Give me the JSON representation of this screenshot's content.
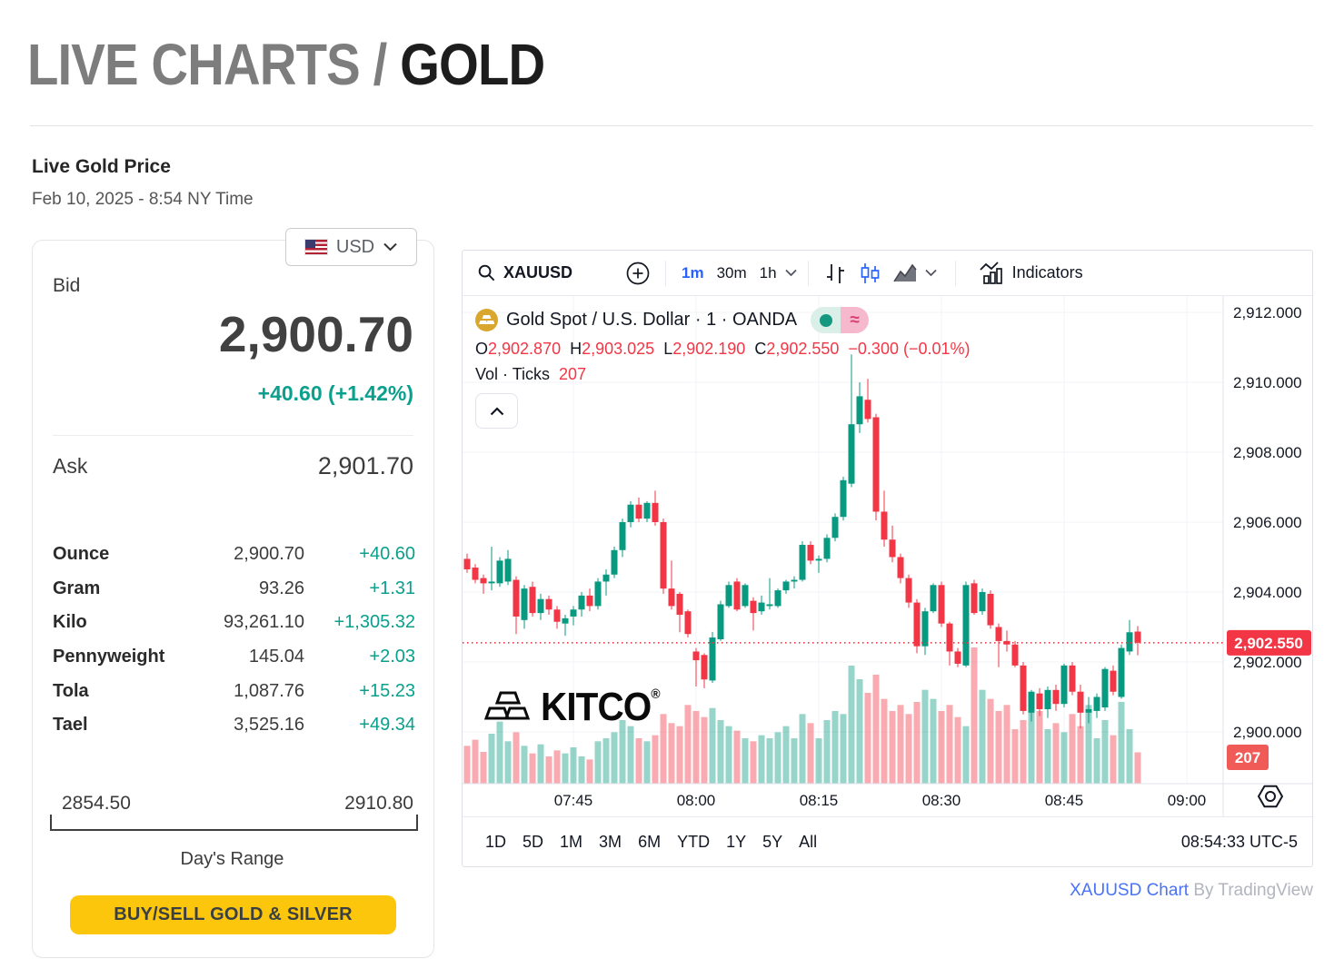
{
  "page": {
    "title_gray": "LIVE CHARTS /",
    "title_black": "GOLD",
    "section_title": "Live Gold Price",
    "datetime": "Feb 10, 2025 - 8:54 NY Time",
    "footer_link": "XAUUSD Chart",
    "footer_by": "By TradingView"
  },
  "quote_card": {
    "currency": "USD",
    "bid_label": "Bid",
    "bid": "2,900.70",
    "change": "+40.60 (+1.42%)",
    "ask_label": "Ask",
    "ask": "2,901.70",
    "units": [
      {
        "label": "Ounce",
        "value": "2,900.70",
        "change": "+40.60"
      },
      {
        "label": "Gram",
        "value": "93.26",
        "change": "+1.31"
      },
      {
        "label": "Kilo",
        "value": "93,261.10",
        "change": "+1,305.32"
      },
      {
        "label": "Pennyweight",
        "value": "145.04",
        "change": "+2.03"
      },
      {
        "label": "Tola",
        "value": "1,087.76",
        "change": "+15.23"
      },
      {
        "label": "Tael",
        "value": "3,525.16",
        "change": "+49.34"
      }
    ],
    "range_low": "2854.50",
    "range_high": "2910.80",
    "range_label": "Day's Range",
    "buy_button": "BUY/SELL GOLD & SILVER",
    "accent_teal": "#0aa08d",
    "button_yellow": "#fcc60d"
  },
  "chart": {
    "toolbar": {
      "symbol": "XAUUSD",
      "intervals": [
        "1m",
        "30m",
        "1h"
      ],
      "active_interval": "1m",
      "indicators_label": "Indicators"
    },
    "legend": {
      "title": "Gold Spot / U.S. Dollar · 1 · OANDA",
      "items": [
        {
          "k": "O",
          "v": "2,902.870"
        },
        {
          "k": "H",
          "v": "2,903.025"
        },
        {
          "k": "L",
          "v": "2,902.190"
        },
        {
          "k": "C",
          "v": "2,902.550"
        }
      ],
      "change": "−0.300 (−0.01%)",
      "vol_label": "Vol · Ticks",
      "vol_value": "207"
    },
    "watermark": "KITCO",
    "watermark_reg": "®",
    "range_buttons": [
      "1D",
      "5D",
      "1M",
      "3M",
      "6M",
      "YTD",
      "1Y",
      "5Y",
      "All"
    ],
    "clock": "08:54:33 UTC-5",
    "accent_blue": "#2962ff"
  },
  "chart_data": {
    "type": "candlestick",
    "symbol": "XAUUSD",
    "interval": "1m",
    "start_time": "07:31",
    "title": "Gold Spot / U.S. Dollar · 1 · OANDA",
    "up_color": "#089981",
    "down_color": "#f23645",
    "grid": true,
    "ylim": [
      2899.4,
      2912.6
    ],
    "y_ticks": [
      {
        "v": 2912,
        "label": "2,912.000"
      },
      {
        "v": 2910,
        "label": "2,910.000"
      },
      {
        "v": 2908,
        "label": "2,908.000"
      },
      {
        "v": 2906,
        "label": "2,906.000"
      },
      {
        "v": 2904,
        "label": "2,904.000"
      },
      {
        "v": 2902,
        "label": "2,902.000"
      },
      {
        "v": 2900,
        "label": "2,900.000"
      }
    ],
    "x_ticks": [
      {
        "minute": 14,
        "label": "07:45"
      },
      {
        "minute": 29,
        "label": "08:00"
      },
      {
        "minute": 44,
        "label": "08:15"
      },
      {
        "minute": 59,
        "label": "08:30"
      },
      {
        "minute": 74,
        "label": "08:45"
      },
      {
        "minute": 89,
        "label": "09:00"
      }
    ],
    "last_price": 2902.55,
    "last_price_label": "2,902.550",
    "last_volume_label": "207",
    "ohlc": [
      [
        2905.6,
        2905.85,
        2904.75,
        2904.9
      ],
      [
        2904.95,
        2905.1,
        2904.55,
        2904.65
      ],
      [
        2904.7,
        2904.8,
        2904.25,
        2904.35
      ],
      [
        2904.4,
        2904.5,
        2903.95,
        2904.25
      ],
      [
        2904.25,
        2905.3,
        2904.05,
        2904.3
      ],
      [
        2904.25,
        2905.0,
        2904.15,
        2904.9
      ],
      [
        2904.3,
        2905.2,
        2904.2,
        2904.95
      ],
      [
        2904.35,
        2904.45,
        2902.8,
        2903.3
      ],
      [
        2903.2,
        2904.2,
        2902.95,
        2904.1
      ],
      [
        2904.15,
        2904.3,
        2903.3,
        2903.4
      ],
      [
        2903.4,
        2903.95,
        2903.2,
        2903.8
      ],
      [
        2903.8,
        2903.9,
        2903.35,
        2903.5
      ],
      [
        2903.5,
        2903.6,
        2902.95,
        2903.15
      ],
      [
        2903.1,
        2903.35,
        2902.75,
        2903.25
      ],
      [
        2903.3,
        2903.6,
        2903.05,
        2903.5
      ],
      [
        2903.5,
        2904.0,
        2903.3,
        2903.9
      ],
      [
        2903.9,
        2904.1,
        2903.45,
        2903.6
      ],
      [
        2903.6,
        2904.4,
        2903.5,
        2904.3
      ],
      [
        2904.3,
        2904.65,
        2903.9,
        2904.5
      ],
      [
        2904.5,
        2905.3,
        2904.4,
        2905.2
      ],
      [
        2905.2,
        2906.1,
        2905.0,
        2906.0
      ],
      [
        2906.0,
        2906.6,
        2905.85,
        2906.5
      ],
      [
        2906.5,
        2906.7,
        2906.0,
        2906.1
      ],
      [
        2906.1,
        2906.6,
        2906.0,
        2906.55
      ],
      [
        2906.55,
        2906.9,
        2905.9,
        2906.0
      ],
      [
        2906.0,
        2906.1,
        2903.95,
        2904.1
      ],
      [
        2904.1,
        2904.9,
        2903.5,
        2903.6
      ],
      [
        2903.95,
        2904.0,
        2902.85,
        2903.35
      ],
      [
        2903.45,
        2903.5,
        2902.7,
        2902.8
      ],
      [
        2902.3,
        2902.4,
        2901.3,
        2902.05
      ],
      [
        2902.2,
        2902.25,
        2901.25,
        2901.5
      ],
      [
        2901.47,
        2902.86,
        2901.4,
        2902.7
      ],
      [
        2902.65,
        2903.75,
        2902.6,
        2903.65
      ],
      [
        2903.6,
        2904.3,
        2903.55,
        2904.2
      ],
      [
        2904.3,
        2904.4,
        2903.45,
        2903.5
      ],
      [
        2903.6,
        2904.25,
        2903.55,
        2904.2
      ],
      [
        2903.75,
        2903.85,
        2902.9,
        2903.4
      ],
      [
        2903.45,
        2903.9,
        2903.35,
        2903.7
      ],
      [
        2903.6,
        2904.4,
        2903.5,
        2903.65
      ],
      [
        2903.6,
        2904.1,
        2903.55,
        2904.05
      ],
      [
        2904.05,
        2904.35,
        2903.95,
        2904.3
      ],
      [
        2904.3,
        2904.45,
        2904.1,
        2904.35
      ],
      [
        2904.35,
        2905.45,
        2904.3,
        2905.35
      ],
      [
        2905.35,
        2905.45,
        2904.8,
        2904.9
      ],
      [
        2904.9,
        2905.05,
        2904.55,
        2904.95
      ],
      [
        2904.95,
        2905.65,
        2904.85,
        2905.55
      ],
      [
        2905.55,
        2906.25,
        2905.45,
        2906.15
      ],
      [
        2906.15,
        2907.3,
        2906.05,
        2907.2
      ],
      [
        2907.1,
        2910.8,
        2907.0,
        2908.8
      ],
      [
        2908.8,
        2910.0,
        2908.55,
        2909.6
      ],
      [
        2909.5,
        2910.1,
        2908.85,
        2908.95
      ],
      [
        2909.0,
        2909.1,
        2906.05,
        2906.3
      ],
      [
        2906.3,
        2906.9,
        2905.3,
        2905.5
      ],
      [
        2905.5,
        2905.9,
        2904.85,
        2905.0
      ],
      [
        2905.0,
        2905.1,
        2904.25,
        2904.4
      ],
      [
        2904.4,
        2904.5,
        2903.55,
        2903.7
      ],
      [
        2903.7,
        2903.8,
        2902.25,
        2902.45
      ],
      [
        2902.45,
        2903.55,
        2902.2,
        2903.45
      ],
      [
        2903.45,
        2904.25,
        2903.4,
        2904.2
      ],
      [
        2904.2,
        2904.3,
        2903.0,
        2903.1
      ],
      [
        2903.1,
        2903.15,
        2901.9,
        2902.3
      ],
      [
        2902.3,
        2902.4,
        2901.85,
        2901.95
      ],
      [
        2901.9,
        2904.3,
        2901.85,
        2904.2
      ],
      [
        2904.25,
        2904.35,
        2903.35,
        2903.4
      ],
      [
        2903.45,
        2904.1,
        2903.35,
        2904.0
      ],
      [
        2903.95,
        2904.05,
        2902.95,
        2903.05
      ],
      [
        2903.0,
        2903.1,
        2901.85,
        2902.6
      ],
      [
        2902.6,
        2902.9,
        2902.3,
        2902.5
      ],
      [
        2902.5,
        2902.6,
        2901.85,
        2901.9
      ],
      [
        2901.9,
        2902.0,
        2900.5,
        2900.6
      ],
      [
        2900.55,
        2901.2,
        2900.3,
        2901.15
      ],
      [
        2901.1,
        2901.25,
        2900.45,
        2900.65
      ],
      [
        2900.65,
        2901.3,
        2900.4,
        2901.2
      ],
      [
        2901.2,
        2901.35,
        2900.6,
        2900.8
      ],
      [
        2900.8,
        2901.95,
        2900.7,
        2901.9
      ],
      [
        2901.9,
        2902.0,
        2901.05,
        2901.15
      ],
      [
        2901.15,
        2901.35,
        2900.1,
        2900.55
      ],
      [
        2900.55,
        2901.0,
        2900.25,
        2900.65
      ],
      [
        2900.6,
        2901.1,
        2900.4,
        2901.0
      ],
      [
        2900.7,
        2901.85,
        2900.6,
        2901.8
      ],
      [
        2901.75,
        2901.9,
        2901.05,
        2901.15
      ],
      [
        2901.0,
        2902.5,
        2900.95,
        2902.4
      ],
      [
        2902.3,
        2903.2,
        2902.2,
        2902.85
      ],
      [
        2902.87,
        2903.03,
        2902.19,
        2902.55
      ]
    ],
    "volume": [
      360,
      250,
      290,
      210,
      330,
      410,
      280,
      340,
      250,
      200,
      260,
      180,
      220,
      200,
      240,
      180,
      160,
      280,
      300,
      340,
      420,
      380,
      300,
      280,
      320,
      460,
      400,
      380,
      520,
      480,
      440,
      500,
      420,
      380,
      350,
      300,
      280,
      320,
      300,
      340,
      380,
      300,
      460,
      400,
      300,
      420,
      480,
      460,
      780,
      690,
      600,
      720,
      560,
      480,
      520,
      460,
      540,
      620,
      560,
      480,
      520,
      440,
      380,
      900,
      620,
      560,
      480,
      520,
      360,
      420,
      580,
      480,
      360,
      400,
      340,
      460,
      380,
      520,
      300,
      420,
      320,
      540,
      360,
      207
    ]
  }
}
